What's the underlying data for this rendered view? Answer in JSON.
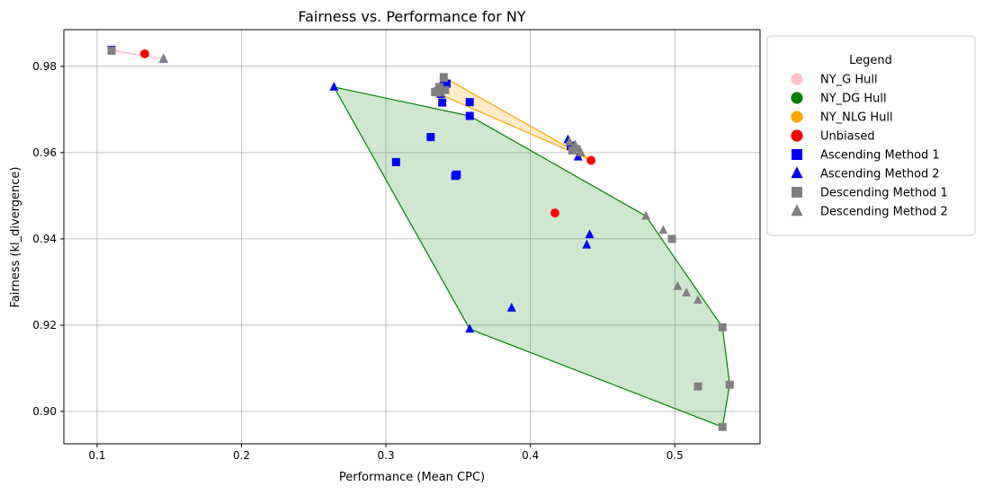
{
  "chart_data": {
    "type": "scatter",
    "title": "Fairness vs. Performance for NY",
    "xlabel": "Performance (Mean CPC)",
    "ylabel": "Fairness (kl_divergence)",
    "xlim": [
      0.077,
      0.559
    ],
    "ylim": [
      0.8925,
      0.9885
    ],
    "xticks": [
      {
        "value": 0.1,
        "label": "0.1"
      },
      {
        "value": 0.2,
        "label": "0.2"
      },
      {
        "value": 0.3,
        "label": "0.3"
      },
      {
        "value": 0.4,
        "label": "0.4"
      },
      {
        "value": 0.5,
        "label": "0.5"
      }
    ],
    "yticks": [
      {
        "value": 0.9,
        "label": "0.90"
      },
      {
        "value": 0.92,
        "label": "0.92"
      },
      {
        "value": 0.94,
        "label": "0.94"
      },
      {
        "value": 0.96,
        "label": "0.96"
      },
      {
        "value": 0.98,
        "label": "0.98"
      }
    ],
    "grid": true,
    "legend": {
      "title": "Legend",
      "placement": "outside-right",
      "entries": [
        {
          "label": "NY_G Hull",
          "marker": "circle",
          "color": "#ffc0cb"
        },
        {
          "label": "NY_DG Hull",
          "marker": "circle",
          "color": "#008000"
        },
        {
          "label": "NY_NLG Hull",
          "marker": "circle",
          "color": "#ffa500"
        },
        {
          "label": "Unbiased",
          "marker": "circle",
          "color": "#ff0000"
        },
        {
          "label": "Ascending Method 1",
          "marker": "square",
          "color": "#0000ff"
        },
        {
          "label": "Ascending Method 2",
          "marker": "triangle",
          "color": "#0000ff"
        },
        {
          "label": "Descending Method 1",
          "marker": "square",
          "color": "#808080"
        },
        {
          "label": "Descending Method 2",
          "marker": "triangle",
          "color": "#808080"
        }
      ]
    },
    "hulls": [
      {
        "name": "NY_G Hull",
        "edge": "#ffc0cb",
        "fill": "#ffc0cb",
        "fill_opacity": 0.35,
        "points": [
          [
            0.11,
            0.9838
          ],
          [
            0.146,
            0.9817
          ],
          [
            0.11,
            0.9836
          ]
        ]
      },
      {
        "name": "NY_DG Hull",
        "edge": "#008000",
        "fill": "#008000",
        "fill_opacity": 0.19,
        "points": [
          [
            0.264,
            0.9752
          ],
          [
            0.358,
            0.9685
          ],
          [
            0.48,
            0.9453
          ],
          [
            0.533,
            0.9195
          ],
          [
            0.538,
            0.9062
          ],
          [
            0.533,
            0.8964
          ],
          [
            0.358,
            0.9191
          ]
        ]
      },
      {
        "name": "NY_NLG Hull",
        "edge": "#ffa500",
        "fill": "#ffa500",
        "fill_opacity": 0.22,
        "points": [
          [
            0.34,
            0.9775
          ],
          [
            0.442,
            0.9582
          ],
          [
            0.334,
            0.974
          ],
          [
            0.339,
            0.9716
          ]
        ]
      }
    ],
    "series": [
      {
        "name": "Unbiased",
        "marker": "circle",
        "color": "#ff0000",
        "points": [
          [
            0.133,
            0.9829
          ],
          [
            0.442,
            0.9582
          ],
          [
            0.417,
            0.946
          ]
        ]
      },
      {
        "name": "Ascending Method 1",
        "marker": "square",
        "color": "#0000ff",
        "points": [
          [
            0.11,
            0.9838
          ],
          [
            0.307,
            0.9578
          ],
          [
            0.331,
            0.9636
          ],
          [
            0.348,
            0.9546
          ],
          [
            0.349,
            0.9549
          ],
          [
            0.358,
            0.9717
          ],
          [
            0.358,
            0.9685
          ],
          [
            0.336,
            0.9742
          ],
          [
            0.339,
            0.9716
          ],
          [
            0.34,
            0.9755
          ],
          [
            0.342,
            0.976
          ],
          [
            0.428,
            0.9615
          ]
        ]
      },
      {
        "name": "Ascending Method 2",
        "marker": "triangle",
        "color": "#0000ff",
        "points": [
          [
            0.146,
            0.9817
          ],
          [
            0.264,
            0.9752
          ],
          [
            0.358,
            0.9191
          ],
          [
            0.387,
            0.924
          ],
          [
            0.439,
            0.9386
          ],
          [
            0.441,
            0.941
          ],
          [
            0.426,
            0.963
          ],
          [
            0.43,
            0.9615
          ],
          [
            0.433,
            0.959
          ],
          [
            0.338,
            0.9735
          ],
          [
            0.341,
            0.9762
          ]
        ]
      },
      {
        "name": "Descending Method 1",
        "marker": "square",
        "color": "#808080",
        "points": [
          [
            0.11,
            0.9836
          ],
          [
            0.34,
            0.9775
          ],
          [
            0.334,
            0.974
          ],
          [
            0.337,
            0.9752
          ],
          [
            0.341,
            0.9745
          ],
          [
            0.429,
            0.9605
          ],
          [
            0.432,
            0.9608
          ],
          [
            0.498,
            0.94
          ],
          [
            0.516,
            0.9058
          ],
          [
            0.533,
            0.9195
          ],
          [
            0.538,
            0.9062
          ],
          [
            0.533,
            0.8964
          ]
        ]
      },
      {
        "name": "Descending Method 2",
        "marker": "triangle",
        "color": "#808080",
        "points": [
          [
            0.146,
            0.9818
          ],
          [
            0.34,
            0.9772
          ],
          [
            0.335,
            0.9745
          ],
          [
            0.337,
            0.9738
          ],
          [
            0.427,
            0.9625
          ],
          [
            0.431,
            0.9618
          ],
          [
            0.435,
            0.96
          ],
          [
            0.48,
            0.9453
          ],
          [
            0.492,
            0.942
          ],
          [
            0.502,
            0.929
          ],
          [
            0.508,
            0.9275
          ],
          [
            0.516,
            0.9258
          ]
        ]
      }
    ]
  }
}
